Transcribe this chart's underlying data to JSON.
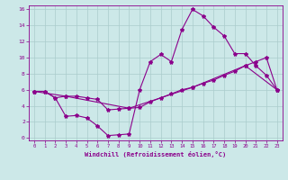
{
  "xlabel": "Windchill (Refroidissement éolien,°C)",
  "background_color": "#cce8e8",
  "line_color": "#8b008b",
  "grid_color": "#aacccc",
  "xlim": [
    -0.5,
    23.5
  ],
  "ylim": [
    -0.3,
    16.5
  ],
  "xticks": [
    0,
    1,
    2,
    3,
    4,
    5,
    6,
    7,
    8,
    9,
    10,
    11,
    12,
    13,
    14,
    15,
    16,
    17,
    18,
    19,
    20,
    21,
    22,
    23
  ],
  "yticks": [
    0,
    2,
    4,
    6,
    8,
    10,
    12,
    14,
    16
  ],
  "line1_x": [
    0,
    1,
    2,
    3,
    4,
    5,
    6,
    7,
    8,
    9,
    10,
    11,
    12,
    13,
    14,
    15,
    16,
    17,
    18,
    19,
    20,
    21,
    22,
    23
  ],
  "line1_y": [
    5.8,
    5.8,
    5.0,
    2.7,
    2.8,
    2.5,
    1.5,
    0.3,
    0.4,
    0.5,
    6.0,
    9.5,
    10.4,
    9.5,
    13.5,
    16.0,
    15.2,
    13.8,
    12.7,
    10.5,
    10.5,
    9.0,
    7.8,
    6.0
  ],
  "line2_x": [
    0,
    1,
    2,
    3,
    4,
    5,
    6,
    7,
    8,
    9,
    10,
    11,
    12,
    13,
    14,
    15,
    16,
    17,
    18,
    19,
    20,
    21,
    22,
    23
  ],
  "line2_y": [
    5.8,
    5.8,
    5.0,
    5.2,
    5.2,
    5.0,
    4.8,
    3.5,
    3.6,
    3.7,
    3.8,
    4.5,
    5.0,
    5.5,
    6.0,
    6.3,
    6.8,
    7.2,
    7.8,
    8.3,
    9.0,
    9.5,
    10.0,
    6.0
  ],
  "line3_x": [
    0,
    3,
    9,
    15,
    20,
    23
  ],
  "line3_y": [
    5.8,
    5.2,
    3.7,
    6.3,
    9.0,
    6.0
  ]
}
